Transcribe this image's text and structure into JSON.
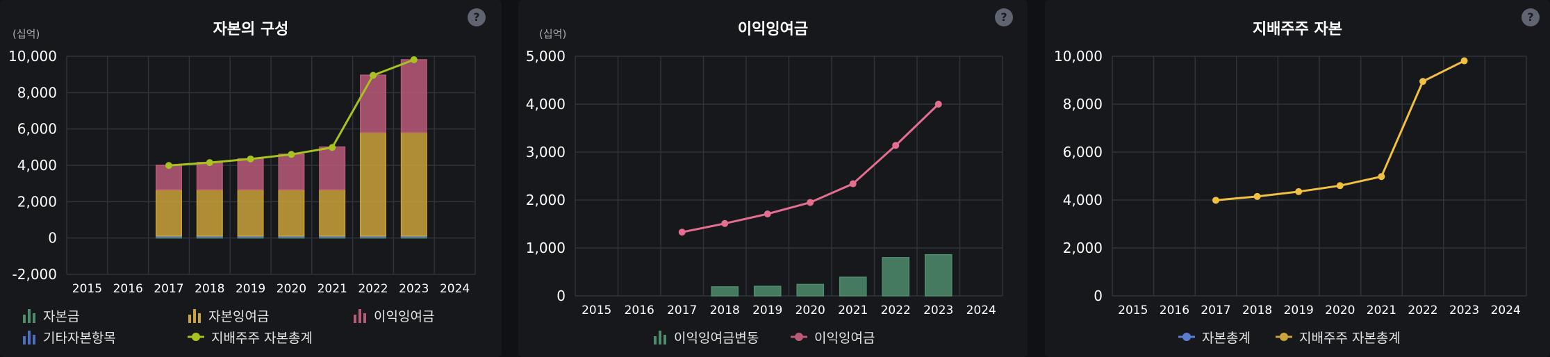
{
  "colors": {
    "capital": "#4e8c6c",
    "capital_surplus": "#c9a23a",
    "retained": "#b95b78",
    "other": "#4e6fc2",
    "controlling_line": "#a8c21f",
    "retained_line": "#e46e8f",
    "retained_change_bar": "#4e8c6c",
    "yellow_line": "#f0c040"
  },
  "panels": [
    {
      "title": "자본의 구성",
      "help": "?",
      "unit": "(십억)",
      "legend": [
        "자본금",
        "자본잉여금",
        "이익잉여금",
        "기타자본항목",
        "지배주주 자본총계"
      ]
    },
    {
      "title": "이익잉여금",
      "help": "?",
      "unit": "(십억)",
      "legend": [
        "이익잉여금변동",
        "이익잉여금"
      ]
    },
    {
      "title": "지배주주 자본",
      "help": "?",
      "unit": "(십억)",
      "legend": [
        "자본총계",
        "지배주주 자본총계"
      ]
    }
  ],
  "chart_data": [
    {
      "type": "bar",
      "stacked": true,
      "title": "자본의 구성",
      "categories": [
        "2015",
        "2016",
        "2017",
        "2018",
        "2019",
        "2020",
        "2021",
        "2022",
        "2023",
        "2024"
      ],
      "ylim": [
        -2000,
        10000
      ],
      "yticks": [
        "-2,000",
        "0",
        "2,000",
        "4,000",
        "6,000",
        "8,000",
        "10,000"
      ],
      "grid": true,
      "legend_position": "bottom",
      "series": [
        {
          "name": "자본금",
          "kind": "bar",
          "values": [
            null,
            null,
            50,
            50,
            50,
            50,
            50,
            50,
            50,
            null
          ]
        },
        {
          "name": "기타자본항목",
          "kind": "bar",
          "values": [
            null,
            null,
            60,
            60,
            60,
            60,
            60,
            60,
            60,
            null
          ]
        },
        {
          "name": "자본잉여금",
          "kind": "bar",
          "values": [
            null,
            null,
            2550,
            2550,
            2550,
            2550,
            2550,
            5700,
            5700,
            null
          ]
        },
        {
          "name": "이익잉여금",
          "kind": "bar",
          "values": [
            null,
            null,
            1340,
            1500,
            1700,
            1950,
            2350,
            3150,
            4000,
            null
          ]
        },
        {
          "name": "지배주주 자본총계",
          "kind": "line",
          "values": [
            null,
            null,
            3990,
            4150,
            4350,
            4600,
            4980,
            8950,
            9810,
            null
          ]
        }
      ]
    },
    {
      "type": "bar",
      "title": "이익잉여금",
      "categories": [
        "2015",
        "2016",
        "2017",
        "2018",
        "2019",
        "2020",
        "2021",
        "2022",
        "2023",
        "2024"
      ],
      "ylim": [
        0,
        5000
      ],
      "yticks": [
        "0",
        "1,000",
        "2,000",
        "3,000",
        "4,000",
        "5,000"
      ],
      "grid": true,
      "legend_position": "bottom",
      "series": [
        {
          "name": "이익잉여금변동",
          "kind": "bar",
          "values": [
            null,
            null,
            null,
            190,
            200,
            240,
            390,
            800,
            860,
            null
          ]
        },
        {
          "name": "이익잉여금",
          "kind": "line",
          "values": [
            null,
            null,
            1330,
            1510,
            1710,
            1950,
            2340,
            3140,
            4000,
            null
          ]
        }
      ]
    },
    {
      "type": "line",
      "title": "지배주주 자본",
      "categories": [
        "2015",
        "2016",
        "2017",
        "2018",
        "2019",
        "2020",
        "2021",
        "2022",
        "2023",
        "2024"
      ],
      "ylim": [
        0,
        10000
      ],
      "yticks": [
        "0",
        "2,000",
        "4,000",
        "6,000",
        "8,000",
        "10,000"
      ],
      "grid": true,
      "legend_position": "bottom",
      "series": [
        {
          "name": "지배주주 자본총계",
          "kind": "line",
          "values": [
            null,
            null,
            3990,
            4150,
            4350,
            4600,
            4980,
            8950,
            9810,
            null
          ]
        }
      ]
    }
  ]
}
